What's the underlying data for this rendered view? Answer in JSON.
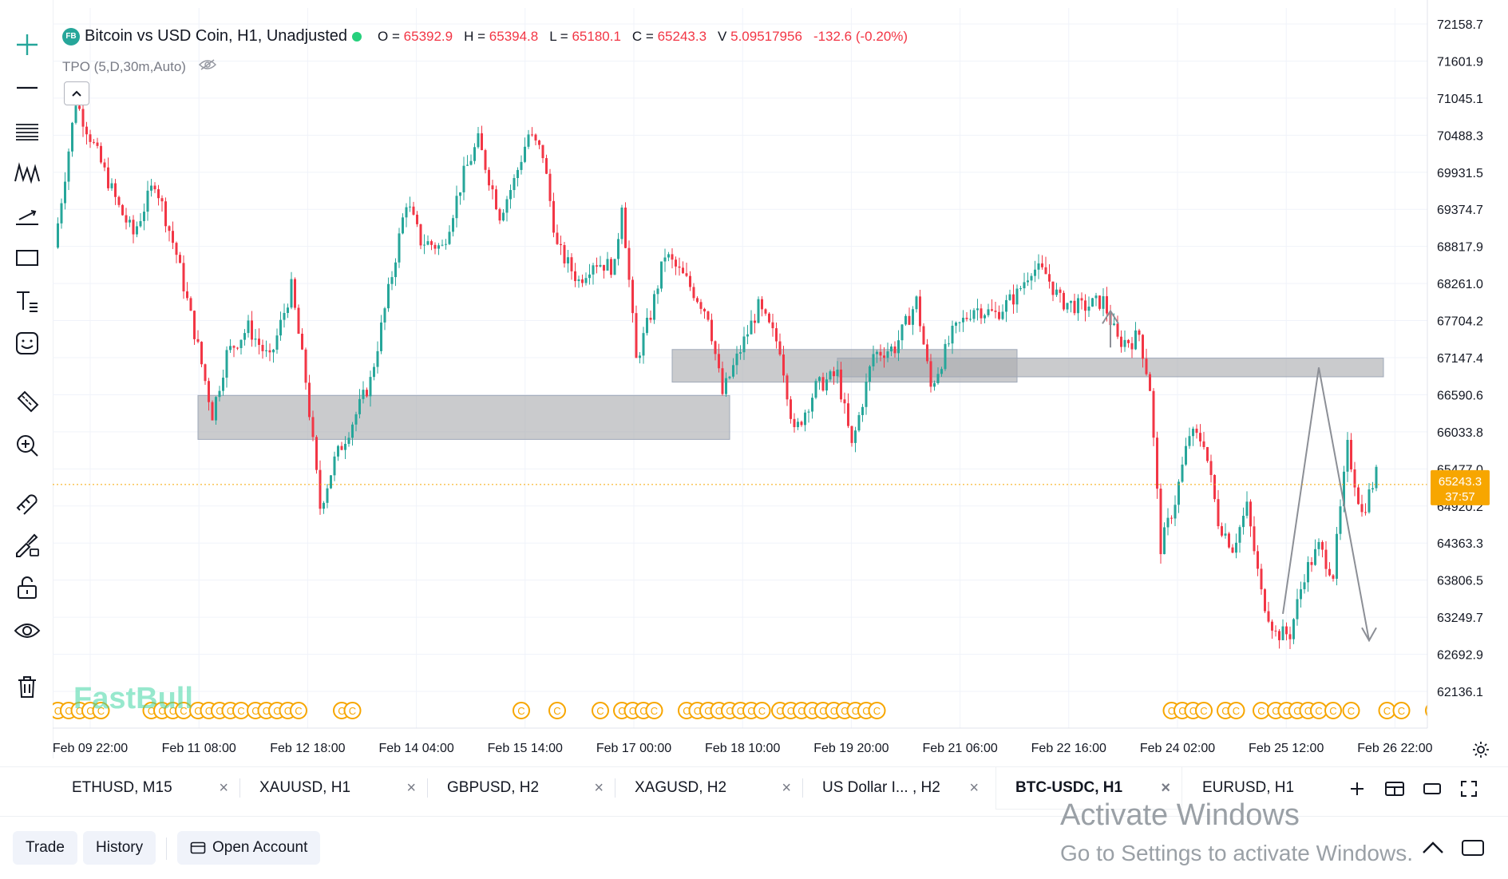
{
  "header": {
    "symbol_badge": "FB",
    "title": "Bitcoin vs USD Coin, H1, Unadjusted",
    "open_label": "O =",
    "open": "65392.9",
    "high_label": "H =",
    "high": "65394.8",
    "low_label": "L =",
    "low": "65180.1",
    "close_label": "C =",
    "close": "65243.3",
    "volume_label": "V",
    "volume": "5.09517956",
    "change": "-132.6 (-0.20%)"
  },
  "indicator": {
    "label": "TPO (5,D,30m,Auto)"
  },
  "watermark": "FastBull",
  "colors": {
    "up": "#26a69a",
    "down": "#f23645",
    "live_dot": "#26d07c",
    "price_tag": "#f7a600",
    "zone": "#a9abae",
    "event_marker": "#f7a600"
  },
  "chart_data": {
    "type": "candlestick",
    "symbol": "BTC-USDC",
    "timeframe": "H1",
    "y_ticks": [
      "72158.7",
      "71601.9",
      "71045.1",
      "70488.3",
      "69931.5",
      "69374.7",
      "68817.9",
      "68261.0",
      "67704.2",
      "67147.4",
      "66590.6",
      "66033.8",
      "65477.0",
      "64920.2",
      "64363.3",
      "63806.5",
      "63249.7",
      "62692.9",
      "62136.1"
    ],
    "ylim": [
      61900,
      72500
    ],
    "x_ticks": [
      "Feb 09 22:00",
      "Feb 11 08:00",
      "Feb 12 18:00",
      "Feb 14 04:00",
      "Feb 15 14:00",
      "Feb 17 00:00",
      "Feb 18 10:00",
      "Feb 19 20:00",
      "Feb 21 06:00",
      "Feb 22 16:00",
      "Feb 24 02:00",
      "Feb 25 12:00",
      "Feb 26 22:00"
    ],
    "current_price": "65243.3",
    "countdown": "37:57",
    "price_path": [
      {
        "t": 0,
        "p": 68800
      },
      {
        "t": 3,
        "p": 69900
      },
      {
        "t": 6,
        "p": 71000
      },
      {
        "t": 12,
        "p": 70200
      },
      {
        "t": 18,
        "p": 69400
      },
      {
        "t": 22,
        "p": 69000
      },
      {
        "t": 28,
        "p": 69800
      },
      {
        "t": 34,
        "p": 68700
      },
      {
        "t": 40,
        "p": 67300
      },
      {
        "t": 44,
        "p": 66300
      },
      {
        "t": 48,
        "p": 67200
      },
      {
        "t": 54,
        "p": 67600
      },
      {
        "t": 60,
        "p": 67100
      },
      {
        "t": 66,
        "p": 68200
      },
      {
        "t": 70,
        "p": 66800
      },
      {
        "t": 74,
        "p": 64900
      },
      {
        "t": 78,
        "p": 65600
      },
      {
        "t": 84,
        "p": 66300
      },
      {
        "t": 88,
        "p": 66800
      },
      {
        "t": 94,
        "p": 68400
      },
      {
        "t": 98,
        "p": 69500
      },
      {
        "t": 102,
        "p": 68900
      },
      {
        "t": 108,
        "p": 68800
      },
      {
        "t": 114,
        "p": 69900
      },
      {
        "t": 118,
        "p": 70400
      },
      {
        "t": 124,
        "p": 69300
      },
      {
        "t": 128,
        "p": 69800
      },
      {
        "t": 132,
        "p": 70500
      },
      {
        "t": 136,
        "p": 70200
      },
      {
        "t": 140,
        "p": 68800
      },
      {
        "t": 146,
        "p": 68300
      },
      {
        "t": 150,
        "p": 68600
      },
      {
        "t": 156,
        "p": 68500
      },
      {
        "t": 158,
        "p": 69500
      },
      {
        "t": 162,
        "p": 67100
      },
      {
        "t": 166,
        "p": 67800
      },
      {
        "t": 170,
        "p": 68700
      },
      {
        "t": 176,
        "p": 68300
      },
      {
        "t": 182,
        "p": 67800
      },
      {
        "t": 186,
        "p": 66600
      },
      {
        "t": 192,
        "p": 67400
      },
      {
        "t": 196,
        "p": 67900
      },
      {
        "t": 202,
        "p": 67300
      },
      {
        "t": 206,
        "p": 66000
      },
      {
        "t": 212,
        "p": 66700
      },
      {
        "t": 218,
        "p": 66900
      },
      {
        "t": 222,
        "p": 65800
      },
      {
        "t": 228,
        "p": 67200
      },
      {
        "t": 234,
        "p": 67300
      },
      {
        "t": 240,
        "p": 68000
      },
      {
        "t": 244,
        "p": 66700
      },
      {
        "t": 250,
        "p": 67500
      },
      {
        "t": 256,
        "p": 67900
      },
      {
        "t": 262,
        "p": 67800
      },
      {
        "t": 268,
        "p": 68100
      },
      {
        "t": 272,
        "p": 68500
      },
      {
        "t": 276,
        "p": 68400
      },
      {
        "t": 280,
        "p": 68000
      },
      {
        "t": 286,
        "p": 67900
      },
      {
        "t": 292,
        "p": 68000
      },
      {
        "t": 296,
        "p": 67400
      },
      {
        "t": 300,
        "p": 67400
      },
      {
        "t": 302,
        "p": 67500
      },
      {
        "t": 305,
        "p": 66700
      },
      {
        "t": 308,
        "p": 64300
      },
      {
        "t": 312,
        "p": 65000
      },
      {
        "t": 316,
        "p": 66000
      },
      {
        "t": 320,
        "p": 65900
      },
      {
        "t": 324,
        "p": 64700
      },
      {
        "t": 328,
        "p": 64300
      },
      {
        "t": 332,
        "p": 64900
      },
      {
        "t": 336,
        "p": 63600
      },
      {
        "t": 340,
        "p": 63000
      },
      {
        "t": 344,
        "p": 63000
      },
      {
        "t": 348,
        "p": 63900
      },
      {
        "t": 352,
        "p": 64300
      },
      {
        "t": 356,
        "p": 63900
      },
      {
        "t": 360,
        "p": 65800
      },
      {
        "t": 364,
        "p": 64800
      },
      {
        "t": 368,
        "p": 65400
      }
    ],
    "zones": [
      {
        "t_from": 40,
        "t_to": 188,
        "p_low": 65920,
        "p_high": 66580
      },
      {
        "t_from": 172,
        "t_to": 268,
        "p_low": 66780,
        "p_high": 67270
      },
      {
        "t_from": 218,
        "t_to": 370,
        "p_low": 66860,
        "p_high": 67140
      }
    ],
    "annotations": [
      {
        "kind": "arrow",
        "from": {
          "t": 294,
          "p": 67300
        },
        "to": {
          "t": 294,
          "p": 67850
        }
      },
      {
        "kind": "zigzag-arrow",
        "points": [
          {
            "t": 342,
            "p": 63300
          },
          {
            "t": 352,
            "p": 67000
          },
          {
            "t": 366,
            "p": 62900
          }
        ]
      }
    ],
    "event_markers": [
      1,
      4,
      7,
      10,
      13,
      27,
      30,
      33,
      36,
      40,
      43,
      46,
      49,
      52,
      56,
      59,
      62,
      65,
      68,
      80,
      83,
      130,
      140,
      152,
      158,
      161,
      164,
      167,
      176,
      179,
      182,
      185,
      188,
      191,
      194,
      197,
      202,
      205,
      208,
      211,
      214,
      217,
      220,
      223,
      226,
      229,
      311,
      314,
      317,
      320,
      326,
      329,
      336,
      340,
      343,
      346,
      349,
      352,
      356,
      361,
      371,
      375,
      384
    ]
  },
  "left_toolbar": [
    "crosshair-icon",
    "horizontal-line-icon",
    "fib-icon",
    "pattern-icon",
    "trend-icon",
    "rectangle-icon",
    "text-icon",
    "emoji-icon",
    "ruler-icon",
    "zoom-icon",
    "magnet-icon",
    "brush-lock-icon",
    "lock-icon",
    "eye-icon",
    "trash-icon"
  ],
  "tabs": [
    {
      "label": "ETHUSD, M15"
    },
    {
      "label": "XAUUSD, H1"
    },
    {
      "label": "GBPUSD, H2"
    },
    {
      "label": "XAGUSD, H2"
    },
    {
      "label": "US Dollar I... , H2"
    },
    {
      "label": "BTC-USDC, H1"
    },
    {
      "label": "EURUSD, H1"
    }
  ],
  "tab_close": "×",
  "bottom": {
    "trade": "Trade",
    "history": "History",
    "open_account": "Open Account"
  },
  "os_notice": {
    "line1": "Activate Windows",
    "line2": "Go to Settings to activate Windows."
  }
}
